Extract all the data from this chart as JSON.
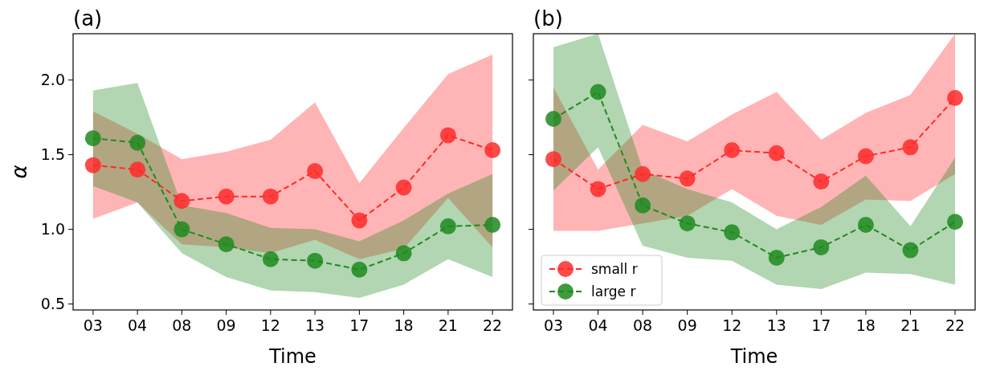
{
  "chart_data": [
    {
      "type": "line",
      "title": "(a)",
      "xlabel": "Time",
      "ylabel": "α",
      "categories": [
        "03",
        "04",
        "08",
        "09",
        "12",
        "13",
        "17",
        "18",
        "21",
        "22"
      ],
      "ylim": [
        0.46,
        2.31
      ],
      "yticks": [
        {
          "value": 0.5,
          "label": "0.5"
        },
        {
          "value": 1,
          "label": "1.0"
        },
        {
          "value": 1.5,
          "label": "1.5"
        },
        {
          "value": 2,
          "label": "2.0"
        }
      ],
      "marker": "circle",
      "line_style": "dashed",
      "legend": false,
      "series": [
        {
          "color": "#ff2a2a",
          "values": [
            1.43,
            1.4,
            1.19,
            1.22,
            1.22,
            1.39,
            1.06,
            1.28,
            1.63,
            1.53
          ],
          "lower": [
            1.07,
            1.18,
            0.9,
            0.88,
            0.84,
            0.93,
            0.8,
            0.87,
            1.21,
            0.88
          ],
          "upper": [
            1.79,
            1.64,
            1.47,
            1.52,
            1.6,
            1.85,
            1.31,
            1.68,
            2.04,
            2.17
          ]
        },
        {
          "color": "#1f8a1f",
          "values": [
            1.61,
            1.58,
            1.0,
            0.9,
            0.8,
            0.79,
            0.73,
            0.84,
            1.02,
            1.03
          ],
          "lower": [
            1.29,
            1.18,
            0.84,
            0.68,
            0.59,
            0.58,
            0.54,
            0.63,
            0.8,
            0.68
          ],
          "upper": [
            1.93,
            1.98,
            1.16,
            1.11,
            1.01,
            1.0,
            0.92,
            1.06,
            1.24,
            1.37
          ]
        }
      ]
    },
    {
      "type": "line",
      "title": "(b)",
      "xlabel": "Time",
      "categories": [
        "03",
        "04",
        "08",
        "09",
        "12",
        "13",
        "17",
        "18",
        "21",
        "22"
      ],
      "ylim": [
        0.46,
        2.31
      ],
      "yticks": [
        {
          "value": 0.5,
          "label": null
        },
        {
          "value": 1,
          "label": null
        },
        {
          "value": 1.5,
          "label": null
        },
        {
          "value": 2,
          "label": null
        }
      ],
      "tick_labels": "x",
      "marker": "circle",
      "line_style": "dashed",
      "legend": "bottom left",
      "series": [
        {
          "name": "small r",
          "color": "#ff2a2a",
          "values": [
            1.47,
            1.27,
            1.37,
            1.34,
            1.53,
            1.51,
            1.32,
            1.49,
            1.55,
            1.88
          ],
          "lower": [
            0.99,
            0.99,
            1.04,
            1.09,
            1.27,
            1.09,
            1.03,
            1.2,
            1.19,
            1.37
          ],
          "upper": [
            1.95,
            1.4,
            1.7,
            1.59,
            1.77,
            1.92,
            1.6,
            1.78,
            1.9,
            2.31
          ]
        },
        {
          "name": "large r",
          "color": "#1f8a1f",
          "values": [
            1.74,
            1.92,
            1.16,
            1.04,
            0.98,
            0.81,
            0.88,
            1.03,
            0.86,
            1.05
          ],
          "lower": [
            1.26,
            1.55,
            0.89,
            0.81,
            0.79,
            0.63,
            0.6,
            0.71,
            0.7,
            0.63
          ],
          "upper": [
            2.22,
            2.31,
            1.4,
            1.27,
            1.18,
            1.0,
            1.15,
            1.36,
            1.02,
            1.48
          ]
        }
      ]
    }
  ]
}
